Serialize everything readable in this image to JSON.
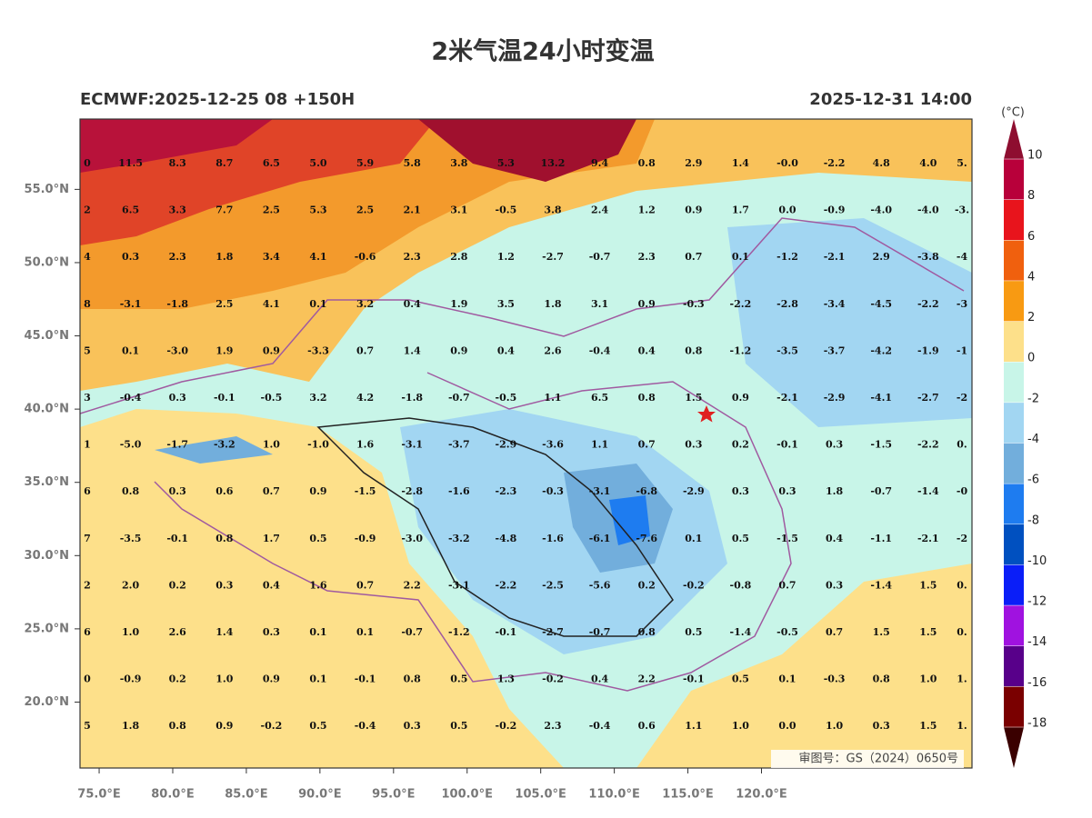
{
  "title": "2米气温24小时变温",
  "subtitle_left": "ECMWF:2025-12-25 08 +150H",
  "subtitle_right": "2025-12-31 14:00",
  "stamp": "审图号：GS（2024）0650号",
  "map": {
    "lonlim": [
      73.7,
      134.3
    ],
    "latlim": [
      15.5,
      59.8
    ],
    "lon_ticks": [
      {
        "value": 75,
        "label": "75.0°E"
      },
      {
        "value": 80,
        "label": "80.0°E"
      },
      {
        "value": 85,
        "label": "85.0°E"
      },
      {
        "value": 90,
        "label": "90.0°E"
      },
      {
        "value": 95,
        "label": "95.0°E"
      },
      {
        "value": 100,
        "label": "100.0°E"
      },
      {
        "value": 105,
        "label": "105.0°E"
      },
      {
        "value": 110,
        "label": "110.0°E"
      },
      {
        "value": 115,
        "label": "115.0°E"
      },
      {
        "value": 120,
        "label": "120.0°E"
      }
    ],
    "lat_ticks": [
      {
        "value": 55,
        "label": "55.0°N"
      },
      {
        "value": 50,
        "label": "50.0°N"
      },
      {
        "value": 45,
        "label": "45.0°N"
      },
      {
        "value": 40,
        "label": "40.0°N"
      },
      {
        "value": 35,
        "label": "35.0°N"
      },
      {
        "value": 30,
        "label": "30.0°N"
      },
      {
        "value": 25,
        "label": "25.0°N"
      },
      {
        "value": 20,
        "label": "20.0°N"
      }
    ],
    "grid_values": [
      [
        "0",
        "11.5",
        "8.3",
        "8.7",
        "6.5",
        "5.0",
        "5.9",
        "5.8",
        "3.8",
        "5.3",
        "13.2",
        "9.4",
        "0.8",
        "2.9",
        "1.4",
        "-0.0",
        "-2.2",
        "4.8",
        "4.0",
        "5."
      ],
      [
        "2",
        "6.5",
        "3.3",
        "7.7",
        "2.5",
        "5.3",
        "2.5",
        "2.1",
        "3.1",
        "-0.5",
        "3.8",
        "2.4",
        "1.2",
        "0.9",
        "1.7",
        "0.0",
        "-0.9",
        "-4.0",
        "-4.0",
        "-3."
      ],
      [
        "4",
        "0.3",
        "2.3",
        "1.8",
        "3.4",
        "4.1",
        "-0.6",
        "2.3",
        "2.8",
        "1.2",
        "-2.7",
        "-0.7",
        "2.3",
        "0.7",
        "0.1",
        "-1.2",
        "-2.1",
        "2.9",
        "-3.8",
        "-4"
      ],
      [
        "8",
        "-3.1",
        "-1.8",
        "2.5",
        "4.1",
        "0.1",
        "3.2",
        "0.4",
        "1.9",
        "3.5",
        "1.8",
        "3.1",
        "0.9",
        "-0.3",
        "-2.2",
        "-2.8",
        "-3.4",
        "-4.5",
        "-2.2",
        "-3"
      ],
      [
        "5",
        "0.1",
        "-3.0",
        "1.9",
        "0.9",
        "-3.3",
        "0.7",
        "1.4",
        "0.9",
        "0.4",
        "2.6",
        "-0.4",
        "0.4",
        "0.8",
        "-1.2",
        "-3.5",
        "-3.7",
        "-4.2",
        "-1.9",
        "-1"
      ],
      [
        "3",
        "-0.4",
        "0.3",
        "-0.1",
        "-0.5",
        "3.2",
        "4.2",
        "-1.8",
        "-0.7",
        "-0.5",
        "1.1",
        "6.5",
        "0.8",
        "1.5",
        "0.9",
        "-2.1",
        "-2.9",
        "-4.1",
        "-2.7",
        "-2"
      ],
      [
        "1",
        "-5.0",
        "-1.7",
        "-3.2",
        "1.0",
        "-1.0",
        "1.6",
        "-3.1",
        "-3.7",
        "-2.9",
        "-3.6",
        "1.1",
        "0.7",
        "0.3",
        "0.2",
        "-0.1",
        "0.3",
        "-1.5",
        "-2.2",
        "0."
      ],
      [
        "6",
        "0.8",
        "0.3",
        "0.6",
        "0.7",
        "0.9",
        "-1.5",
        "-2.8",
        "-1.6",
        "-2.3",
        "-0.3",
        "-3.1",
        "-6.8",
        "-2.9",
        "0.3",
        "0.3",
        "1.8",
        "-0.7",
        "-1.4",
        "-0"
      ],
      [
        "7",
        "-3.5",
        "-0.1",
        "0.8",
        "1.7",
        "0.5",
        "-0.9",
        "-3.0",
        "-3.2",
        "-4.8",
        "-1.6",
        "-6.1",
        "-7.6",
        "0.1",
        "0.5",
        "-1.5",
        "0.4",
        "-1.1",
        "-2.1",
        "-2"
      ],
      [
        "2",
        "2.0",
        "0.2",
        "0.3",
        "0.4",
        "1.6",
        "0.7",
        "2.2",
        "-3.1",
        "-2.2",
        "-2.5",
        "-5.6",
        "0.2",
        "-0.2",
        "-0.8",
        "0.7",
        "0.3",
        "-1.4",
        "1.5",
        "0."
      ],
      [
        "6",
        "1.0",
        "2.6",
        "1.4",
        "0.3",
        "0.1",
        "0.1",
        "-0.7",
        "-1.2",
        "-0.1",
        "-2.7",
        "-0.7",
        "0.8",
        "0.5",
        "-1.4",
        "-0.5",
        "0.7",
        "1.5",
        "1.5",
        "0."
      ],
      [
        "0",
        "-0.9",
        "0.2",
        "1.0",
        "0.9",
        "0.1",
        "-0.1",
        "0.8",
        "0.5",
        "1.3",
        "-0.2",
        "0.4",
        "2.2",
        "-0.1",
        "0.5",
        "0.1",
        "-0.3",
        "0.8",
        "1.0",
        "1."
      ],
      [
        "5",
        "1.8",
        "0.8",
        "0.9",
        "-0.2",
        "0.5",
        "-0.4",
        "0.3",
        "0.5",
        "-0.2",
        "2.3",
        "-0.4",
        "0.6",
        "1.1",
        "1.0",
        "0.0",
        "1.0",
        "0.3",
        "1.5",
        "1."
      ]
    ]
  },
  "colorbar": {
    "unit": "(°C)",
    "levels": [
      10,
      8,
      6,
      4,
      2,
      0,
      -2,
      -4,
      -6,
      -8,
      -10,
      -12,
      -14,
      -16,
      -18
    ],
    "colors": [
      "#b8003a",
      "#e8141c",
      "#f0600e",
      "#f89a12",
      "#fde08a",
      "#c8f5e8",
      "#a2d6f2",
      "#72aedc",
      "#1e7cf0",
      "#0050c0",
      "#0a1ef8",
      "#a012e0",
      "#58008a",
      "#7a0000"
    ],
    "over_color": "#8e0e30",
    "under_color": "#3a0000"
  }
}
